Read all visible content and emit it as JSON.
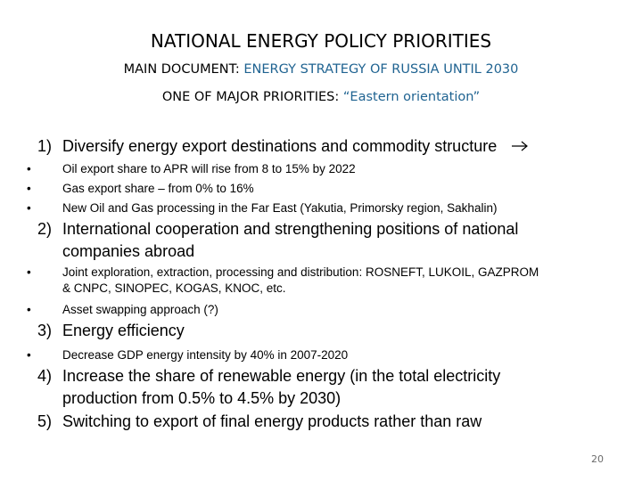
{
  "title": "NATIONAL ENERGY POLICY PRIORITIES",
  "subtitle_1": {
    "label": "MAIN DOCUMENT: ",
    "value": "ENERGY STRATEGY OF RUSSIA UNTIL 2030"
  },
  "subtitle_2": {
    "label": "ONE OF MAJOR PRIORITIES: ",
    "value": "“Eastern orientation”"
  },
  "colors": {
    "accent": "#1f6391",
    "text": "#000000",
    "page_number": "#6b6b6b"
  },
  "sections": [
    {
      "number": "1)",
      "line1": "Diversify energy export destinations and commodity structure",
      "icon": "arrow-right-icon",
      "bullets": [
        "Oil export share to APR will rise from 8 to 15% by 2022",
        "Gas export share – from 0% to 16%",
        "New Oil and Gas processing in the Far East (Yakutia, Primorsky region, Sakhalin)"
      ]
    },
    {
      "number": "2)",
      "line1": "International cooperation and strengthening positions of national",
      "line2": "companies abroad",
      "bullets": [
        {
          "line1": "Joint exploration, extraction, processing and distribution: ROSNEFT, LUKOIL, GAZPROM",
          "line2": "& CNPC, SINOPEC, KOGAS, KNOC, etc."
        },
        "Asset swapping approach (?)"
      ]
    },
    {
      "number": "3)",
      "line1": "Energy efficiency",
      "bullets": [
        "Decrease GDP energy intensity by 40% in 2007-2020"
      ]
    },
    {
      "number": "4)",
      "line1": "Increase the share of renewable energy (in the total electricity",
      "line2": "production from 0.5% to 4.5% by 2030)"
    },
    {
      "number": "5)",
      "line1": "Switching to export of final energy products rather than raw"
    }
  ],
  "bullet_char": "•",
  "page_number": "20"
}
